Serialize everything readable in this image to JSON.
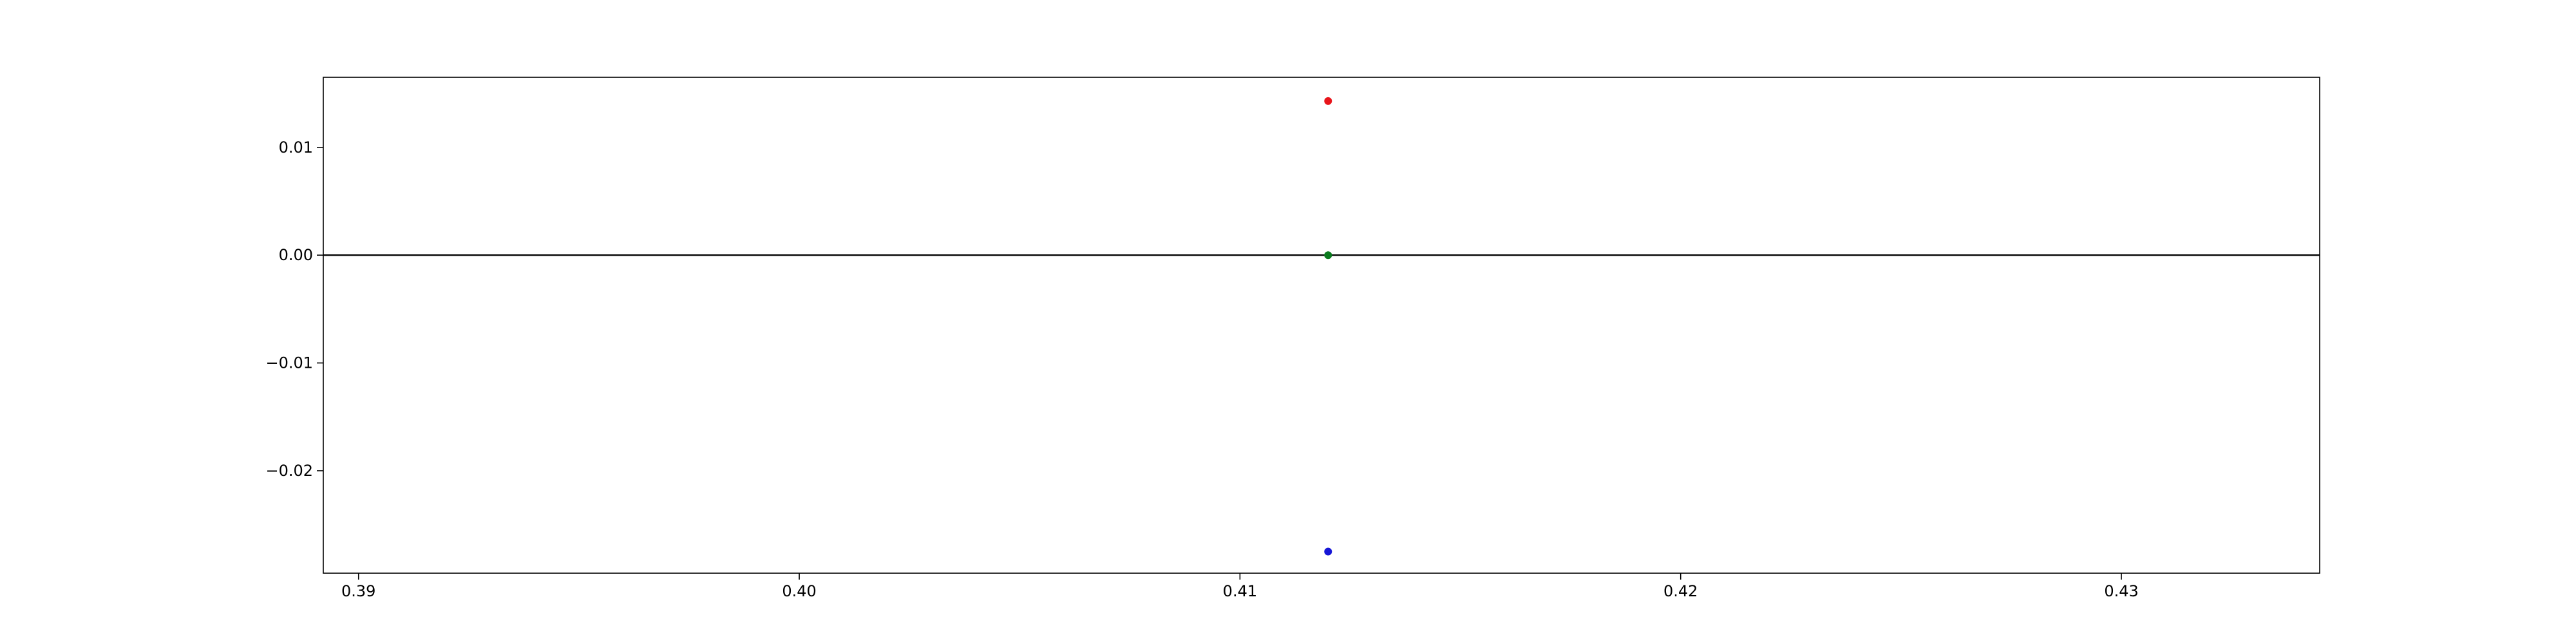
{
  "chart_data": {
    "type": "scatter",
    "title": "",
    "xlabel": "",
    "ylabel": "",
    "xlim": [
      0.3892,
      0.4345
    ],
    "ylim": [
      -0.0295,
      0.0165
    ],
    "xticks": [
      0.39,
      0.4,
      0.41,
      0.42,
      0.43
    ],
    "xtick_labels": [
      "0.39",
      "0.40",
      "0.41",
      "0.42",
      "0.43"
    ],
    "yticks": [
      0.01,
      0.0,
      -0.01,
      -0.02
    ],
    "ytick_labels": [
      "0.01",
      "0.00",
      "−0.01",
      "−0.02"
    ],
    "grid": false,
    "hline": {
      "y": 0.0,
      "color": "#000000"
    },
    "points": [
      {
        "x": 0.412,
        "y": 0.0143,
        "color": "#e8141a"
      },
      {
        "x": 0.412,
        "y": 0.0,
        "color": "#0b7a1e"
      },
      {
        "x": 0.412,
        "y": -0.0275,
        "color": "#1616d6"
      }
    ]
  }
}
